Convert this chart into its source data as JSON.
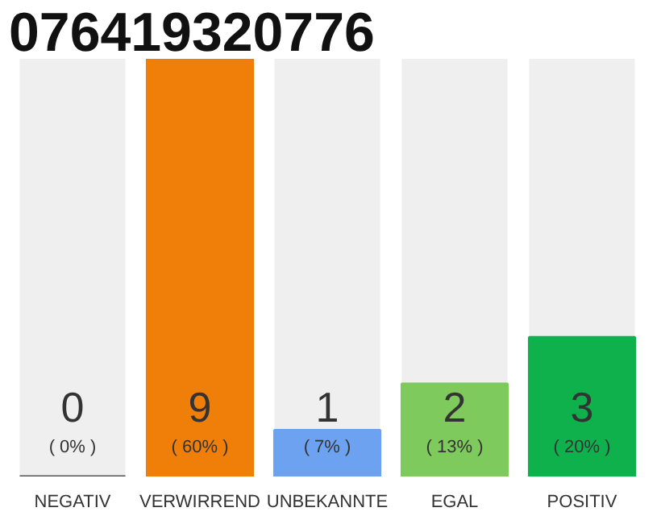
{
  "chart_data": {
    "type": "bar",
    "title": "076419320776",
    "categories": [
      "NEGATIV",
      "VERWIRREND",
      "UNBEKANNTE",
      "EGAL",
      "POSITIV"
    ],
    "values": [
      0,
      9,
      1,
      2,
      3
    ],
    "colors": [
      "#555555",
      "#f07f0a",
      "#6ca2ef",
      "#7eca5c",
      "#0fb14c"
    ],
    "data_labels": true,
    "annotations": [
      "( 0% )",
      "( 60% )",
      "( 7% )",
      "( 13% )",
      "( 20% )"
    ],
    "ylim": [
      0,
      9
    ],
    "grid": false
  }
}
